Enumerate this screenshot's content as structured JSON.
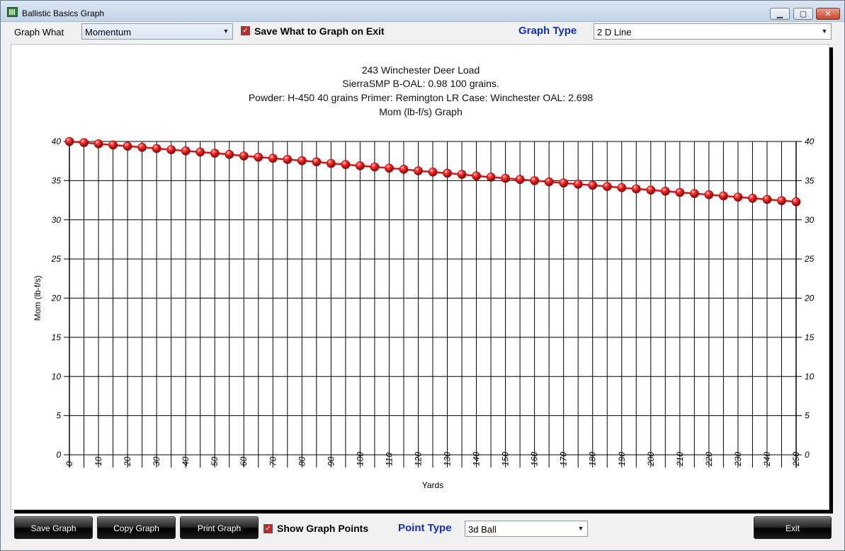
{
  "window": {
    "title": "Ballistic Basics Graph"
  },
  "title_controls": {
    "minimize": "▁",
    "maximize": "▢",
    "close": "✕"
  },
  "toolbar": {
    "graph_what_label": "Graph What",
    "graph_what_value": "Momentum",
    "save_checkbox_label": "Save What to Graph on Exit",
    "graph_type_label": "Graph Type",
    "graph_type_value": "2 D Line"
  },
  "bottom": {
    "save_graph": "Save Graph",
    "copy_graph": "Copy Graph",
    "print_graph": "Print Graph",
    "show_points_label": "Show Graph Points",
    "point_type_label": "Point Type",
    "point_type_value": "3d Ball",
    "exit": "Exit"
  },
  "icons": {
    "checkbox": "checkmark-icon",
    "dropdown": "chevron-down-icon"
  },
  "colors": {
    "series": "#e01010",
    "accent_label": "#1231b8"
  },
  "chart_data": {
    "type": "line",
    "title_lines": [
      "243 Winchester Deer Load",
      "SierraSMP B-OAL: 0.98 100 grains.",
      "Powder: H-450 40 grains Primer: Remington LR Case: Winchester OAL: 2.698",
      "Mom (lb-f/s) Graph"
    ],
    "xlabel": "Yards",
    "ylabel": "Mom (lb-f/s)",
    "xlim": [
      0,
      250
    ],
    "ylim": [
      0,
      40
    ],
    "x_ticks": [
      0,
      10,
      20,
      30,
      40,
      50,
      60,
      70,
      80,
      90,
      100,
      110,
      120,
      130,
      140,
      150,
      160,
      170,
      180,
      190,
      200,
      210,
      220,
      230,
      240,
      250
    ],
    "y_ticks": [
      0,
      5,
      10,
      15,
      20,
      25,
      30,
      35,
      40
    ],
    "grid": true,
    "marker": "3d ball",
    "series": [
      {
        "x": [
          0,
          5,
          10,
          15,
          20,
          25,
          30,
          35,
          40,
          45,
          50,
          55,
          60,
          65,
          70,
          75,
          80,
          85,
          90,
          95,
          100,
          105,
          110,
          115,
          120,
          125,
          130,
          135,
          140,
          145,
          150,
          155,
          160,
          165,
          170,
          175,
          180,
          185,
          190,
          195,
          200,
          205,
          210,
          215,
          220,
          225,
          230,
          235,
          240,
          245,
          250
        ],
        "values": [
          40.0,
          39.85,
          39.7,
          39.55,
          39.4,
          39.25,
          39.1,
          38.95,
          38.8,
          38.65,
          38.5,
          38.35,
          38.15,
          38.0,
          37.85,
          37.7,
          37.55,
          37.4,
          37.2,
          37.05,
          36.9,
          36.75,
          36.6,
          36.45,
          36.25,
          36.1,
          35.95,
          35.8,
          35.6,
          35.45,
          35.3,
          35.15,
          35.0,
          34.85,
          34.7,
          34.55,
          34.4,
          34.25,
          34.1,
          33.95,
          33.8,
          33.65,
          33.5,
          33.35,
          33.2,
          33.05,
          32.9,
          32.75,
          32.6,
          32.45,
          32.3
        ]
      }
    ]
  }
}
